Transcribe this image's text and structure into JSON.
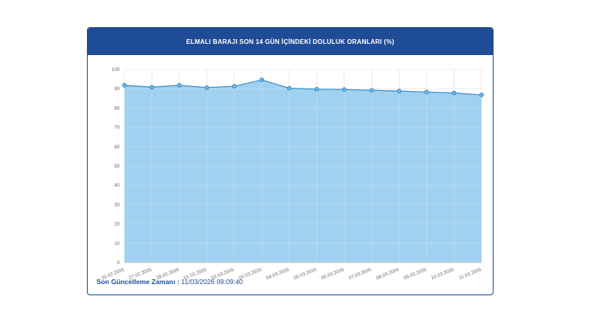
{
  "header": {
    "title": "ELMALI BARAJI SON 14 GÜN İÇİNDEKİ DOLULUK ORANLARI (%)"
  },
  "footer": {
    "label": "Son Güncelleme Zamanı :",
    "value": "11/03/2026 09:09:40"
  },
  "colors": {
    "header_bg": "#1f4c96",
    "area_fill": "#9ccfef",
    "line": "#3d8fc9",
    "point": "#6cb7e6"
  },
  "chart_data": {
    "type": "area",
    "title": "ELMALI BARAJI SON 14 GÜN İÇİNDEKİ DOLULUK ORANLARI (%)",
    "xlabel": "",
    "ylabel": "",
    "categories": [
      "26.02.2026",
      "27.02.2026",
      "28.02.2026",
      "01.03.2026",
      "02.03.2026",
      "03.03.2026",
      "04.03.2026",
      "05.03.2026",
      "06.03.2026",
      "07.03.2026",
      "08.03.2026",
      "09.03.2026",
      "10.03.2026",
      "11.03.2026"
    ],
    "series": [
      {
        "values": [
          91.8,
          90.8,
          91.8,
          90.6,
          91.3,
          94.6,
          90.3,
          89.8,
          89.6,
          89.2,
          88.8,
          88.3,
          87.8,
          86.8
        ]
      }
    ],
    "yticks": [
      0,
      10,
      20,
      30,
      40,
      50,
      60,
      70,
      80,
      90,
      100
    ],
    "ylim": [
      0,
      100
    ],
    "grid": true,
    "legend": "none"
  }
}
